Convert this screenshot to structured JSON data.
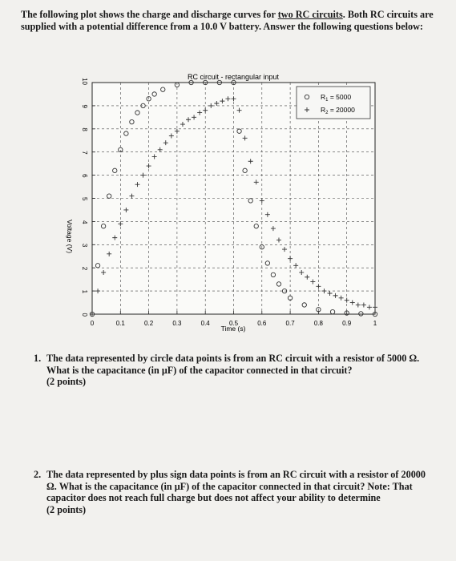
{
  "intro": {
    "part1": "The following plot shows the charge and discharge curves for ",
    "link": "two RC circuits",
    "part2": ". Both RC circuits are supplied with a potential difference from a 10.0 V battery. Answer the following questions below:"
  },
  "chart_data": {
    "type": "scatter",
    "title": "RC circuit - rectangular input",
    "xlabel": "Time (s)",
    "ylabel": "Voltage (V)",
    "xlim": [
      0,
      1
    ],
    "ylim": [
      0,
      10
    ],
    "xticks": [
      "0",
      "0.1",
      "0.2",
      "0.3",
      "0.4",
      "0.5",
      "0.6",
      "0.7",
      "0.8",
      "0.9",
      "1"
    ],
    "yticks": [
      "0",
      "1",
      "2",
      "3",
      "4",
      "5",
      "6",
      "7",
      "8",
      "9",
      "10"
    ],
    "grid": true,
    "legend_position": "top-right",
    "series": [
      {
        "name": "R1 = 5000",
        "marker": "circle",
        "color": "#333333",
        "x": [
          0.0,
          0.02,
          0.04,
          0.06,
          0.08,
          0.1,
          0.12,
          0.14,
          0.16,
          0.18,
          0.2,
          0.22,
          0.25,
          0.3,
          0.35,
          0.4,
          0.45,
          0.5,
          0.52,
          0.54,
          0.56,
          0.58,
          0.6,
          0.62,
          0.64,
          0.66,
          0.68,
          0.7,
          0.75,
          0.8,
          0.85,
          0.9,
          0.95,
          1.0
        ],
        "y": [
          0.0,
          2.1,
          3.8,
          5.1,
          6.2,
          7.1,
          7.8,
          8.3,
          8.7,
          9.0,
          9.3,
          9.5,
          9.7,
          9.9,
          10.0,
          10.0,
          10.0,
          10.0,
          7.9,
          6.2,
          4.9,
          3.8,
          2.9,
          2.2,
          1.7,
          1.3,
          1.0,
          0.7,
          0.4,
          0.2,
          0.1,
          0.05,
          0.02,
          0.0
        ]
      },
      {
        "name": "R2 = 20000",
        "marker": "plus",
        "color": "#333333",
        "x": [
          0.0,
          0.02,
          0.04,
          0.06,
          0.08,
          0.1,
          0.12,
          0.14,
          0.16,
          0.18,
          0.2,
          0.22,
          0.24,
          0.26,
          0.28,
          0.3,
          0.32,
          0.34,
          0.36,
          0.38,
          0.4,
          0.42,
          0.44,
          0.46,
          0.48,
          0.5,
          0.52,
          0.54,
          0.56,
          0.58,
          0.6,
          0.62,
          0.64,
          0.66,
          0.68,
          0.7,
          0.72,
          0.74,
          0.76,
          0.78,
          0.8,
          0.82,
          0.84,
          0.86,
          0.88,
          0.9,
          0.92,
          0.94,
          0.96,
          0.98,
          1.0
        ],
        "y": [
          0.0,
          1.0,
          1.8,
          2.6,
          3.3,
          3.9,
          4.5,
          5.1,
          5.6,
          6.0,
          6.4,
          6.8,
          7.1,
          7.4,
          7.7,
          7.9,
          8.2,
          8.4,
          8.5,
          8.7,
          8.8,
          9.0,
          9.1,
          9.2,
          9.3,
          9.3,
          8.8,
          7.6,
          6.6,
          5.7,
          4.9,
          4.3,
          3.7,
          3.2,
          2.8,
          2.4,
          2.1,
          1.8,
          1.6,
          1.4,
          1.2,
          1.0,
          0.9,
          0.8,
          0.7,
          0.6,
          0.5,
          0.4,
          0.4,
          0.3,
          0.3
        ]
      }
    ],
    "legend": [
      {
        "label": "R",
        "sub": "1",
        "value": " = 5000"
      },
      {
        "label": "R",
        "sub": "2",
        "value": " = 20000"
      }
    ]
  },
  "questions": [
    {
      "number": "1.",
      "text": "The data represented by circle data points is from an RC circuit with a resistor of 5000 Ω. What is the capacitance (in μF) of the capacitor connected in that circuit?",
      "points": "(2 points)"
    },
    {
      "number": "2.",
      "text": "The data represented by plus sign data points is from an RC circuit with a resistor of 20000 Ω. What is the capacitance (in μF) of the capacitor connected in that circuit? Note: That capacitor does not reach full charge but does not affect your ability to determine",
      "points": "(2 points)"
    }
  ]
}
